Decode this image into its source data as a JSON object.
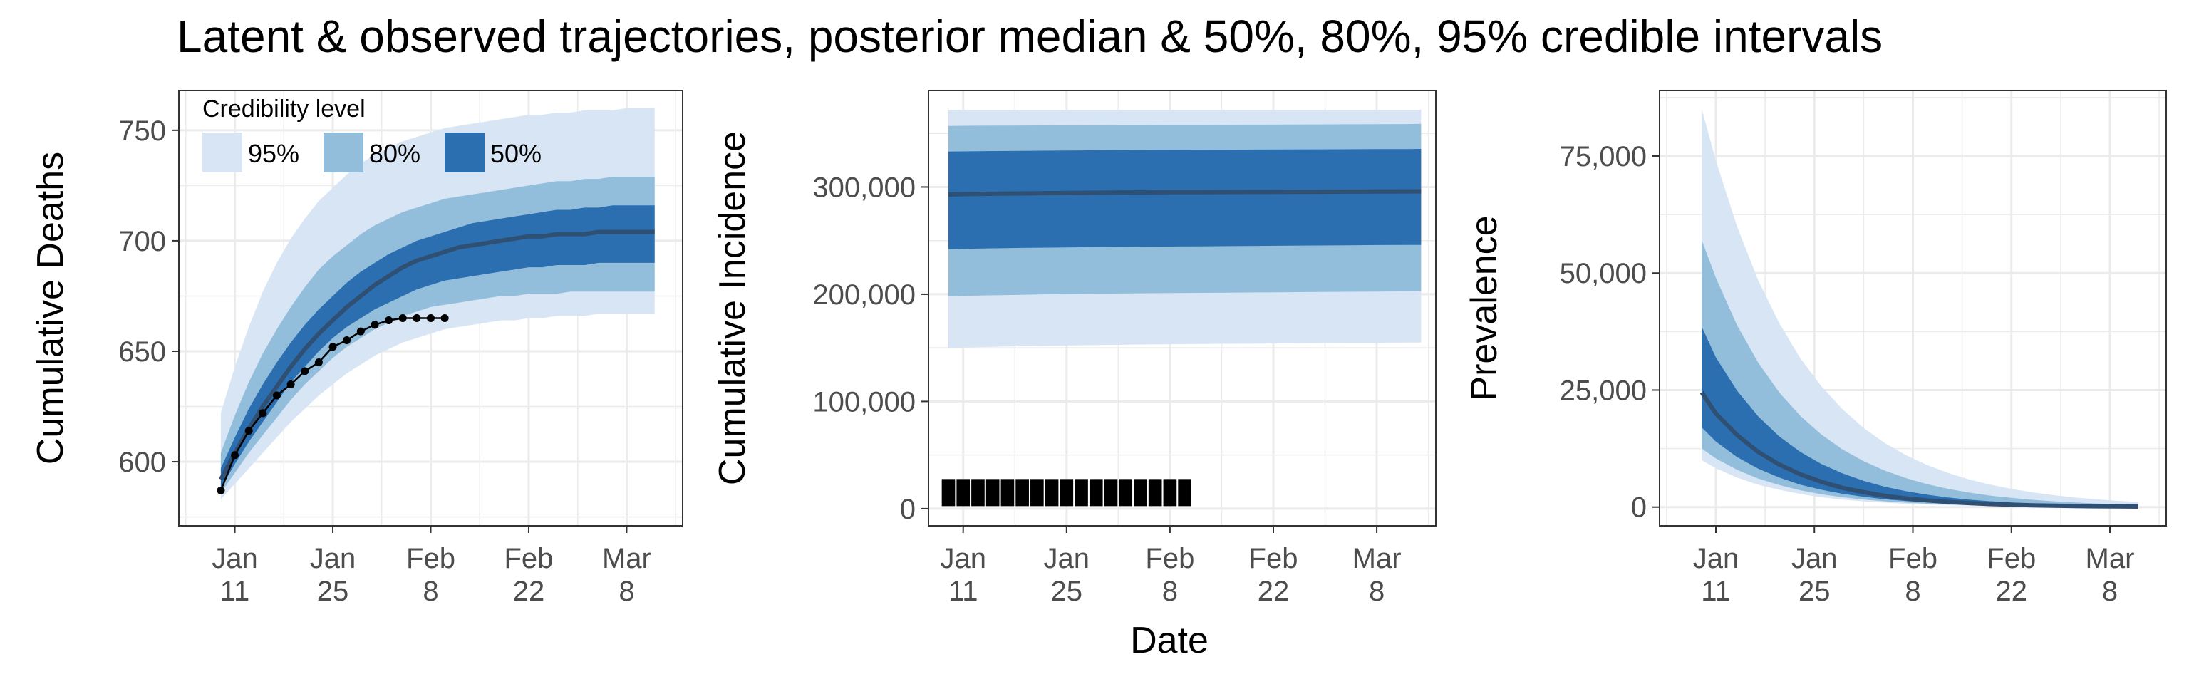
{
  "title": "Latent & observed trajectories, posterior median & 50%, 80%, 95% credible intervals",
  "shared_xlabel": "Date",
  "colors": {
    "ci95": "#d7e5f4",
    "ci80": "#92bedc",
    "ci50": "#2b6fb1",
    "median": "#2f4f73",
    "observed": "#000000",
    "grid": "#ebebeb",
    "panel_border": "#333333"
  },
  "legend": {
    "title": "Credibility level",
    "items": [
      {
        "label": "95%",
        "color": "#d7e5f4"
      },
      {
        "label": "80%",
        "color": "#92bedc"
      },
      {
        "label": "50%",
        "color": "#2b6fb1"
      }
    ]
  },
  "chart_data": [
    {
      "type": "area",
      "ylabel": "Cumulative Deaths",
      "xlabel": "",
      "x_ticks": [
        {
          "day": 0,
          "line1": "Jan",
          "line2": "11"
        },
        {
          "day": 14,
          "line1": "Jan",
          "line2": "25"
        },
        {
          "day": 28,
          "line1": "Feb",
          "line2": "8"
        },
        {
          "day": 42,
          "line1": "Feb",
          "line2": "22"
        },
        {
          "day": 56,
          "line1": "Mar",
          "line2": "8"
        }
      ],
      "x_note": "days since Jan 11",
      "xlim": [
        -8,
        64
      ],
      "ylim": [
        571,
        768
      ],
      "y_ticks": [
        600,
        650,
        700,
        750
      ],
      "grid": true,
      "legend_position": "top-left",
      "bands": {
        "x": [
          -2,
          0,
          2,
          4,
          6,
          8,
          10,
          12,
          14,
          16,
          18,
          20,
          22,
          24,
          26,
          28,
          30,
          32,
          34,
          36,
          38,
          40,
          42,
          44,
          46,
          48,
          50,
          52,
          54,
          56,
          58,
          60
        ],
        "median": [
          592,
          604,
          615,
          625,
          634,
          643,
          651,
          658,
          664,
          670,
          675,
          680,
          684,
          688,
          691,
          693,
          695,
          697,
          698,
          699,
          700,
          701,
          702,
          702,
          703,
          703,
          703,
          704,
          704,
          704,
          704,
          704
        ],
        "lower95": [
          583,
          590,
          597,
          604,
          611,
          618,
          624,
          630,
          635,
          640,
          644,
          648,
          651,
          654,
          656,
          658,
          660,
          661,
          662,
          663,
          664,
          664,
          665,
          665,
          666,
          666,
          666,
          667,
          667,
          667,
          667,
          667
        ],
        "upper95": [
          622,
          643,
          661,
          677,
          690,
          701,
          710,
          718,
          724,
          730,
          735,
          739,
          742,
          745,
          747,
          749,
          751,
          752,
          753,
          754,
          755,
          756,
          757,
          757,
          758,
          758,
          759,
          759,
          759,
          760,
          760,
          760
        ],
        "lower80": [
          586,
          595,
          604,
          612,
          620,
          628,
          635,
          641,
          647,
          652,
          656,
          660,
          663,
          666,
          668,
          670,
          671,
          672,
          673,
          674,
          675,
          675,
          676,
          676,
          676,
          677,
          677,
          677,
          677,
          677,
          677,
          677
        ],
        "upper80": [
          604,
          621,
          636,
          649,
          660,
          670,
          679,
          687,
          693,
          698,
          703,
          707,
          710,
          713,
          715,
          717,
          719,
          720,
          721,
          722,
          723,
          724,
          725,
          726,
          727,
          727,
          728,
          728,
          729,
          729,
          729,
          729
        ],
        "lower50": [
          588,
          599,
          609,
          618,
          627,
          636,
          643,
          650,
          656,
          661,
          665,
          669,
          672,
          675,
          678,
          680,
          682,
          683,
          684,
          685,
          686,
          687,
          688,
          688,
          689,
          689,
          689,
          690,
          690,
          690,
          690,
          690
        ],
        "upper50": [
          597,
          611,
          624,
          635,
          645,
          654,
          662,
          669,
          675,
          681,
          686,
          690,
          694,
          697,
          700,
          702,
          704,
          706,
          708,
          709,
          710,
          711,
          712,
          713,
          714,
          714,
          715,
          715,
          716,
          716,
          716,
          716
        ]
      },
      "observed": {
        "style": "line+points",
        "x": [
          -2,
          0,
          2,
          4,
          6,
          8,
          10,
          12,
          14,
          16,
          18,
          20,
          22,
          24,
          26,
          28,
          30
        ],
        "y": [
          587,
          603,
          614,
          622,
          630,
          635,
          641,
          645,
          652,
          655,
          659,
          662,
          664,
          665,
          665,
          665,
          665
        ]
      }
    },
    {
      "type": "area",
      "ylabel": "Cumulative Incidence",
      "xlabel": "Date",
      "x_ticks": [
        {
          "day": 0,
          "line1": "Jan",
          "line2": "11"
        },
        {
          "day": 14,
          "line1": "Jan",
          "line2": "25"
        },
        {
          "day": 28,
          "line1": "Feb",
          "line2": "8"
        },
        {
          "day": 42,
          "line1": "Feb",
          "line2": "22"
        },
        {
          "day": 56,
          "line1": "Mar",
          "line2": "8"
        }
      ],
      "x_note": "days since Jan 11",
      "xlim": [
        -4.7,
        64
      ],
      "ylim": [
        -16000,
        390000
      ],
      "y_ticks": [
        0,
        100000,
        200000,
        300000
      ],
      "y_tick_labels": [
        "0",
        "100,000",
        "200,000",
        "300,000"
      ],
      "grid": true,
      "bands": {
        "x": [
          -2,
          0,
          4,
          8,
          12,
          16,
          20,
          24,
          28,
          32,
          36,
          40,
          44,
          48,
          52,
          56,
          60,
          62
        ],
        "median": [
          293000,
          293300,
          293700,
          294000,
          294300,
          294600,
          294800,
          295000,
          295100,
          295200,
          295300,
          295400,
          295500,
          295600,
          295700,
          295800,
          295900,
          296000
        ],
        "lower95": [
          150000,
          150400,
          151000,
          151500,
          152000,
          152400,
          152800,
          153100,
          153400,
          153600,
          153800,
          154000,
          154200,
          154400,
          154600,
          154800,
          155000,
          155000
        ],
        "upper95": [
          372000,
          372000,
          372000,
          372000,
          372000,
          372000,
          372000,
          372000,
          372000,
          372000,
          372000,
          372000,
          372000,
          372000,
          372000,
          372000,
          372000,
          372000
        ],
        "lower80": [
          198000,
          198500,
          199000,
          199500,
          200000,
          200300,
          200600,
          200900,
          201100,
          201300,
          201500,
          201700,
          201900,
          202100,
          202300,
          202500,
          202700,
          203000
        ],
        "upper80": [
          357000,
          357100,
          357300,
          357400,
          357500,
          357600,
          357700,
          357800,
          357900,
          358000,
          358100,
          358200,
          358300,
          358400,
          358500,
          358600,
          358700,
          359000
        ],
        "lower50": [
          242000,
          242300,
          242800,
          243200,
          243500,
          243800,
          244100,
          244300,
          244500,
          244700,
          244900,
          245100,
          245300,
          245500,
          245700,
          245900,
          246000,
          246000
        ],
        "upper50": [
          333000,
          333200,
          333500,
          333700,
          333900,
          334100,
          334300,
          334500,
          334600,
          334700,
          334800,
          334900,
          335000,
          335100,
          335200,
          335300,
          335400,
          335500
        ]
      },
      "observed": {
        "style": "squares",
        "x": [
          -2,
          0,
          2,
          4,
          6,
          8,
          10,
          12,
          14,
          16,
          18,
          20,
          22,
          24,
          26,
          28,
          30
        ],
        "y": [
          15000,
          15000,
          15000,
          15000,
          15000,
          15000,
          15000,
          15000,
          15000,
          15000,
          15000,
          15000,
          15000,
          15000,
          15000,
          15000,
          15000
        ]
      }
    },
    {
      "type": "area",
      "ylabel": "Prevalence",
      "xlabel": "",
      "x_ticks": [
        {
          "day": 0,
          "line1": "Jan",
          "line2": "11"
        },
        {
          "day": 14,
          "line1": "Jan",
          "line2": "25"
        },
        {
          "day": 28,
          "line1": "Feb",
          "line2": "8"
        },
        {
          "day": 42,
          "line1": "Feb",
          "line2": "22"
        },
        {
          "day": 56,
          "line1": "Mar",
          "line2": "8"
        }
      ],
      "x_note": "days since Jan 11",
      "xlim": [
        -8,
        64
      ],
      "ylim": [
        -4000,
        89000
      ],
      "y_ticks": [
        0,
        25000,
        50000,
        75000
      ],
      "y_tick_labels": [
        "0",
        "25,000",
        "50,000",
        "75,000"
      ],
      "grid": true,
      "bands": {
        "x": [
          -2,
          0,
          3,
          6,
          9,
          12,
          15,
          18,
          21,
          24,
          27,
          30,
          33,
          36,
          39,
          42,
          45,
          48,
          51,
          54,
          57,
          60
        ],
        "median": [
          24500,
          20000,
          15400,
          11800,
          9100,
          7000,
          5400,
          4100,
          3200,
          2400,
          1860,
          1430,
          1100,
          850,
          650,
          500,
          385,
          300,
          230,
          175,
          135,
          105
        ],
        "lower95": [
          10000,
          8300,
          6300,
          4800,
          3700,
          2800,
          2100,
          1600,
          1230,
          940,
          720,
          550,
          420,
          320,
          245,
          185,
          140,
          108,
          82,
          63,
          48,
          37
        ],
        "upper95": [
          85000,
          74000,
          60000,
          48500,
          39300,
          31800,
          25800,
          20900,
          16900,
          13700,
          11100,
          9000,
          7300,
          5900,
          4800,
          3900,
          3150,
          2550,
          2060,
          1670,
          1350,
          1100
        ],
        "lower80": [
          12500,
          10400,
          8000,
          6100,
          4700,
          3600,
          2750,
          2100,
          1610,
          1230,
          940,
          720,
          550,
          420,
          320,
          245,
          188,
          144,
          110,
          84,
          64,
          49
        ],
        "upper80": [
          57000,
          49000,
          38900,
          30900,
          24500,
          19500,
          15500,
          12300,
          9800,
          7800,
          6200,
          4900,
          3900,
          3100,
          2460,
          1960,
          1550,
          1230,
          980,
          780,
          620,
          490
        ],
        "lower50": [
          17000,
          14000,
          10700,
          8200,
          6300,
          4800,
          3700,
          2850,
          2190,
          1680,
          1290,
          990,
          760,
          585,
          450,
          345,
          265,
          204,
          157,
          120,
          92,
          71
        ],
        "upper50": [
          38500,
          32000,
          24900,
          19400,
          15100,
          11800,
          9200,
          7200,
          5600,
          4360,
          3400,
          2650,
          2060,
          1600,
          1250,
          975,
          760,
          590,
          460,
          360,
          280,
          218
        ]
      }
    }
  ]
}
